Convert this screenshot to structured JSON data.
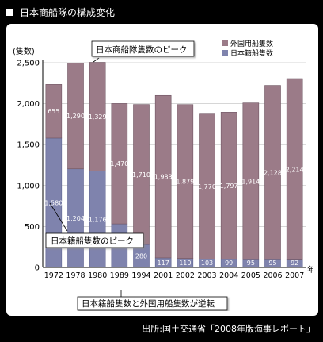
{
  "page_title": "日本商船隊の構成変化",
  "source": "出所:国土交通省「2008年版海事レポート」",
  "colors": {
    "foreign": "#9b7b88",
    "japanese": "#7f83ad",
    "background": "#000000",
    "panel": "#ffffff"
  },
  "chart_data": {
    "type": "bar",
    "stacked": true,
    "unit_label": "(隻数)",
    "year_suffix": "年",
    "categories": [
      "1972",
      "1978",
      "1980",
      "1989",
      "1994",
      "2001",
      "2002",
      "2003",
      "2004",
      "2005",
      "2006",
      "2007"
    ],
    "series": [
      {
        "name": "日本籍船隻数",
        "values": [
          1580,
          1204,
          1176,
          532,
          280,
          117,
          110,
          103,
          99,
          95,
          95,
          92
        ]
      },
      {
        "name": "外国用船隻数",
        "values": [
          655,
          1290,
          1329,
          1470,
          1710,
          1983,
          1879,
          1770,
          1797,
          1914,
          2128,
          2214
        ]
      }
    ],
    "ylim": [
      0,
      2500
    ],
    "yticks": [
      "0",
      "500",
      "1,000",
      "1,500",
      "2,000",
      "2,500"
    ],
    "value_labels_japanese": [
      "1,580",
      "1,204",
      "1,176",
      "532",
      "280",
      "117",
      "110",
      "103",
      "99",
      "95",
      "95",
      "92"
    ],
    "value_labels_foreign": [
      "655",
      "1,290",
      "1,329",
      "1,470",
      "1,710",
      "1,983",
      "1,879",
      "1,770",
      "1,797",
      "1,914",
      "2,128",
      "2,214"
    ],
    "legend": [
      "外国用船隻数",
      "日本籍船隻数"
    ],
    "legend_position": "top-right",
    "annotations": {
      "japanese_peak": "日本籍船隻数のピーク",
      "fleet_peak": "日本商船隊隻数のピーク",
      "reversal": "日本籍船隻数と外国用船隻数が逆転"
    }
  }
}
